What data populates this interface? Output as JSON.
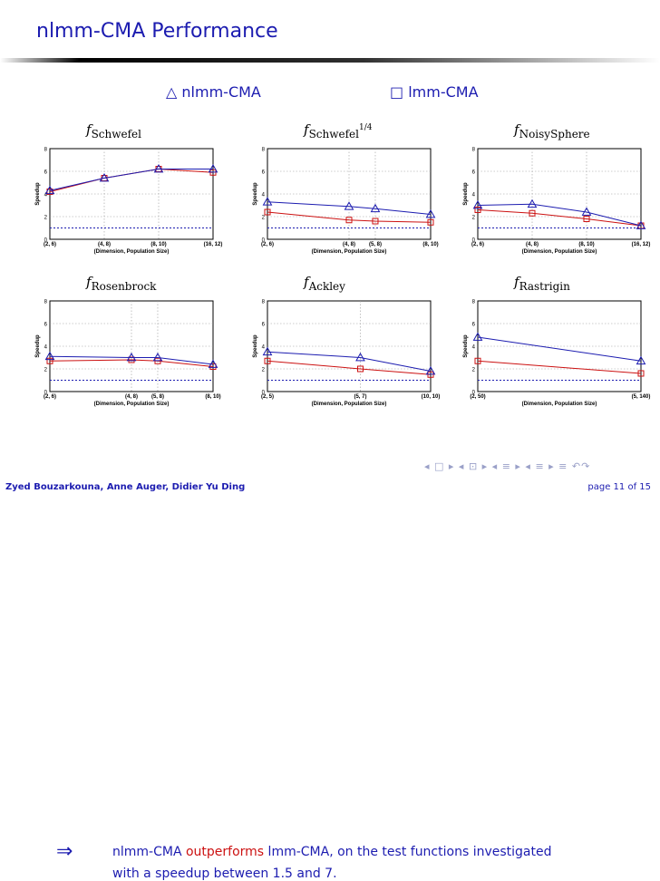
{
  "slide": {
    "title": "nlmm-CMA Performance",
    "legend": {
      "nlmm_symbol": "△",
      "nlmm_label": "nlmm-CMA",
      "lmm_symbol": "□",
      "lmm_label": "lmm-CMA"
    },
    "conclusion": {
      "arrow": "⇒",
      "part1": "nlmm-CMA ",
      "highlight": "outperforms",
      "part2": " lmm-CMA, on the test functions investigated",
      "line2": "with a speedup between 1.5 and 7."
    },
    "footer": {
      "authors": "Zyed Bouzarkouna, Anne Auger, Didier Yu Ding",
      "page": "page 11 of 15"
    },
    "nav_symbols": "◂ □ ▸ ◂ ⊡ ▸ ◂ ≡ ▸ ◂ ≡ ▸ ≡ ↶↷"
  },
  "colors": {
    "title": "#1c1cb0",
    "nlmm": "#1c1cb0",
    "lmm": "#cc1111",
    "highlight": "#cc1111",
    "baseline": "#1c1cb0",
    "grid": "#9a9a9a"
  },
  "chart_data": [
    {
      "type": "line",
      "title_main": "f",
      "title_sub": "Schwefel",
      "title_sup": "",
      "x_tick_labels": [
        "(2, 6)",
        "(4, 8)",
        "(8, 10)",
        "(16, 12)"
      ],
      "x": [
        2,
        4,
        8,
        16
      ],
      "xscale": "log",
      "xlim": [
        2,
        16
      ],
      "ylim": [
        0,
        8
      ],
      "yticks": [
        0,
        2,
        4,
        6,
        8
      ],
      "xlabel": "(Dimension, Population Size)",
      "ylabel": "Speedup",
      "baseline": 1,
      "grid": true,
      "series": [
        {
          "name": "nlmm-CMA",
          "marker": "triangle",
          "values": [
            4.3,
            5.4,
            6.2,
            6.2
          ]
        },
        {
          "name": "lmm-CMA",
          "marker": "square",
          "values": [
            4.2,
            5.4,
            6.2,
            5.9
          ]
        }
      ]
    },
    {
      "type": "line",
      "title_main": "f",
      "title_sub": "Schwefel",
      "title_sup": "1/4",
      "x_tick_labels": [
        "(2, 6)",
        "(4, 8)",
        "(5, 8)",
        "(8, 10)"
      ],
      "x": [
        2,
        4,
        5,
        8
      ],
      "xscale": "log",
      "xlim": [
        2,
        8
      ],
      "ylim": [
        0,
        8
      ],
      "yticks": [
        0,
        2,
        4,
        6,
        8
      ],
      "xlabel": "(Dimension, Population Size)",
      "ylabel": "Speedup",
      "baseline": 1,
      "grid": true,
      "series": [
        {
          "name": "nlmm-CMA",
          "marker": "triangle",
          "values": [
            3.3,
            2.9,
            2.7,
            2.2
          ]
        },
        {
          "name": "lmm-CMA",
          "marker": "square",
          "values": [
            2.4,
            1.7,
            1.6,
            1.5
          ]
        }
      ]
    },
    {
      "type": "line",
      "title_main": "f",
      "title_sub": "NoisySphere",
      "title_sup": "",
      "x_tick_labels": [
        "(2, 6)",
        "(4, 8)",
        "(8, 10)",
        "(16, 12)"
      ],
      "x": [
        2,
        4,
        8,
        16
      ],
      "xscale": "log",
      "xlim": [
        2,
        16
      ],
      "ylim": [
        0,
        8
      ],
      "yticks": [
        0,
        2,
        4,
        6,
        8
      ],
      "xlabel": "(Dimension, Population Size)",
      "ylabel": "Speedup",
      "baseline": 1,
      "grid": true,
      "series": [
        {
          "name": "nlmm-CMA",
          "marker": "triangle",
          "values": [
            3.0,
            3.1,
            2.4,
            1.2
          ]
        },
        {
          "name": "lmm-CMA",
          "marker": "square",
          "values": [
            2.6,
            2.3,
            1.8,
            1.2
          ]
        }
      ]
    },
    {
      "type": "line",
      "title_main": "f",
      "title_sub": "Rosenbrock",
      "title_sup": "",
      "x_tick_labels": [
        "(2, 6)",
        "(4, 8)",
        "(5, 8)",
        "(8, 10)"
      ],
      "x": [
        2,
        4,
        5,
        8
      ],
      "xscale": "log",
      "xlim": [
        2,
        8
      ],
      "ylim": [
        0,
        8
      ],
      "yticks": [
        0,
        2,
        4,
        6,
        8
      ],
      "xlabel": "(Dimension, Population Size)",
      "ylabel": "Speedup",
      "baseline": 1,
      "grid": true,
      "series": [
        {
          "name": "nlmm-CMA",
          "marker": "triangle",
          "values": [
            3.1,
            3.0,
            3.0,
            2.4
          ]
        },
        {
          "name": "lmm-CMA",
          "marker": "square",
          "values": [
            2.7,
            2.8,
            2.7,
            2.2
          ]
        }
      ]
    },
    {
      "type": "line",
      "title_main": "f",
      "title_sub": "Ackley",
      "title_sup": "",
      "x_tick_labels": [
        "(2, 5)",
        "(5, 7)",
        "(10, 10)"
      ],
      "x": [
        2,
        5,
        10
      ],
      "xscale": "log",
      "xlim": [
        2,
        10
      ],
      "ylim": [
        0,
        8
      ],
      "yticks": [
        0,
        2,
        4,
        6,
        8
      ],
      "xlabel": "(Dimension, Population Size)",
      "ylabel": "Speedup",
      "baseline": 1,
      "grid": true,
      "series": [
        {
          "name": "nlmm-CMA",
          "marker": "triangle",
          "values": [
            3.5,
            3.0,
            1.8
          ]
        },
        {
          "name": "lmm-CMA",
          "marker": "square",
          "values": [
            2.7,
            2.0,
            1.5
          ]
        }
      ]
    },
    {
      "type": "line",
      "title_main": "f",
      "title_sub": "Rastrigin",
      "title_sup": "",
      "x_tick_labels": [
        "(2, 50)",
        "(5, 140)"
      ],
      "x": [
        2,
        5
      ],
      "xscale": "log",
      "xlim": [
        2,
        5
      ],
      "ylim": [
        0,
        8
      ],
      "yticks": [
        0,
        2,
        4,
        6,
        8
      ],
      "xlabel": "(Dimension, Population Size)",
      "ylabel": "Speedup",
      "baseline": 1,
      "grid": true,
      "series": [
        {
          "name": "nlmm-CMA",
          "marker": "triangle",
          "values": [
            4.8,
            2.7
          ]
        },
        {
          "name": "lmm-CMA",
          "marker": "square",
          "values": [
            2.7,
            1.6
          ]
        }
      ]
    }
  ]
}
